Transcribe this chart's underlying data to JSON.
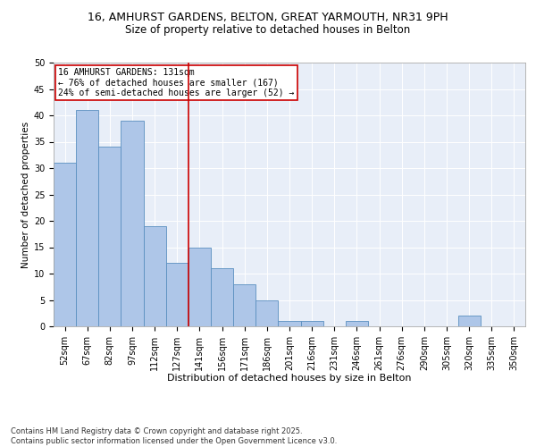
{
  "title1": "16, AMHURST GARDENS, BELTON, GREAT YARMOUTH, NR31 9PH",
  "title2": "Size of property relative to detached houses in Belton",
  "xlabel": "Distribution of detached houses by size in Belton",
  "ylabel": "Number of detached properties",
  "categories": [
    "52sqm",
    "67sqm",
    "82sqm",
    "97sqm",
    "112sqm",
    "127sqm",
    "141sqm",
    "156sqm",
    "171sqm",
    "186sqm",
    "201sqm",
    "216sqm",
    "231sqm",
    "246sqm",
    "261sqm",
    "276sqm",
    "290sqm",
    "305sqm",
    "320sqm",
    "335sqm",
    "350sqm"
  ],
  "values": [
    31,
    41,
    34,
    39,
    19,
    12,
    15,
    11,
    8,
    5,
    1,
    1,
    0,
    1,
    0,
    0,
    0,
    0,
    2,
    0,
    0
  ],
  "bar_color": "#aec6e8",
  "bar_edge_color": "#5a8fc0",
  "property_label": "16 AMHURST GARDENS: 131sqm",
  "annotation_line1": "← 76% of detached houses are smaller (167)",
  "annotation_line2": "24% of semi-detached houses are larger (52) →",
  "vline_x_index": 5.5,
  "vline_color": "#cc0000",
  "annotation_box_color": "#cc0000",
  "ylim": [
    0,
    50
  ],
  "yticks": [
    0,
    5,
    10,
    15,
    20,
    25,
    30,
    35,
    40,
    45,
    50
  ],
  "bg_color": "#e8eef8",
  "footnote1": "Contains HM Land Registry data © Crown copyright and database right 2025.",
  "footnote2": "Contains public sector information licensed under the Open Government Licence v3.0.",
  "title1_fontsize": 9,
  "title2_fontsize": 8.5,
  "xlabel_fontsize": 8,
  "ylabel_fontsize": 7.5,
  "tick_fontsize": 7,
  "annot_fontsize": 7,
  "footnote_fontsize": 6
}
